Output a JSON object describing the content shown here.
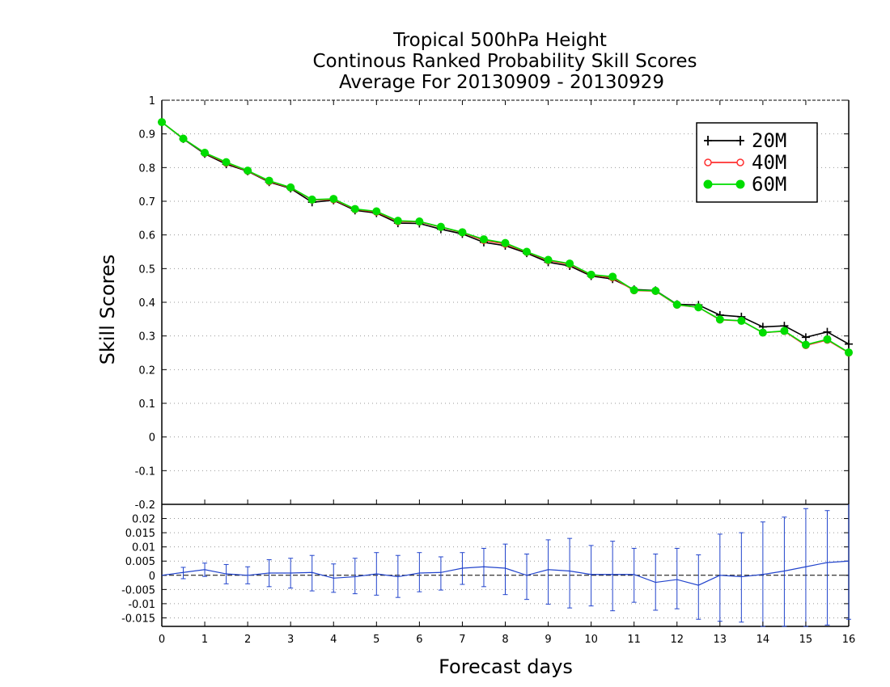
{
  "chart_data": [
    {
      "type": "line",
      "title_lines": [
        "Tropical 500hPa Height",
        "Continous Ranked Probability Skill Scores",
        "Average For 20130909 - 20130929"
      ],
      "xlabel": "Forecast days",
      "ylabel": "Skill Scores",
      "xlim": [
        0,
        16
      ],
      "ylim": [
        -0.2,
        1
      ],
      "x_ticks": [
        0,
        1,
        2,
        3,
        4,
        5,
        6,
        7,
        8,
        9,
        10,
        11,
        12,
        13,
        14,
        15,
        16
      ],
      "y_ticks": [
        -0.2,
        -0.1,
        0,
        0.1,
        0.2,
        0.3,
        0.4,
        0.5,
        0.6,
        0.7,
        0.8,
        0.9,
        1
      ],
      "y_tick_labels": [
        "-0.2",
        "-0.1",
        "0",
        "0.1",
        "0.2",
        "0.3",
        "0.4",
        "0.5",
        "0.6",
        "0.7",
        "0.8",
        "0.9",
        "1"
      ],
      "grid": true,
      "legend_position": "top-right",
      "x": [
        0,
        0.5,
        1,
        1.5,
        2,
        2.5,
        3,
        3.5,
        4,
        4.5,
        5,
        5.5,
        6,
        6.5,
        7,
        7.5,
        8,
        8.5,
        9,
        9.5,
        10,
        10.5,
        11,
        11.5,
        12,
        12.5,
        13,
        13.5,
        14,
        14.5,
        15,
        15.5,
        16
      ],
      "series": [
        {
          "name": "20M",
          "color": "#000000",
          "marker": "plus",
          "values": [
            0.935,
            0.885,
            0.841,
            0.81,
            0.789,
            0.757,
            0.738,
            0.697,
            0.703,
            0.673,
            0.665,
            0.635,
            0.634,
            0.617,
            0.603,
            0.578,
            0.568,
            0.546,
            0.519,
            0.508,
            0.478,
            0.469,
            0.438,
            0.435,
            0.394,
            0.392,
            0.362,
            0.357,
            0.327,
            0.33,
            0.296,
            0.312,
            0.276
          ]
        },
        {
          "name": "40M",
          "color": "#ff3030",
          "marker": "open-circle",
          "values": [
            0.935,
            0.886,
            0.843,
            0.814,
            0.79,
            0.759,
            0.74,
            0.704,
            0.705,
            0.676,
            0.668,
            0.64,
            0.639,
            0.623,
            0.607,
            0.584,
            0.573,
            0.549,
            0.524,
            0.513,
            0.481,
            0.473,
            0.435,
            0.433,
            0.392,
            0.385,
            0.348,
            0.345,
            0.31,
            0.314,
            0.272,
            0.288,
            0.25
          ]
        },
        {
          "name": "60M",
          "color": "#00dd00",
          "marker": "filled-circle",
          "values": [
            0.935,
            0.886,
            0.844,
            0.816,
            0.791,
            0.761,
            0.741,
            0.705,
            0.707,
            0.677,
            0.67,
            0.642,
            0.64,
            0.624,
            0.608,
            0.587,
            0.576,
            0.55,
            0.526,
            0.515,
            0.482,
            0.476,
            0.436,
            0.434,
            0.393,
            0.385,
            0.349,
            0.345,
            0.31,
            0.315,
            0.274,
            0.29,
            0.251
          ]
        }
      ]
    },
    {
      "type": "line",
      "xlim": [
        0,
        16
      ],
      "ylim": [
        -0.018,
        0.025
      ],
      "x_ticks": [
        0,
        1,
        2,
        3,
        4,
        5,
        6,
        7,
        8,
        9,
        10,
        11,
        12,
        13,
        14,
        15,
        16
      ],
      "y_ticks": [
        -0.015,
        -0.01,
        -0.005,
        0,
        0.005,
        0.01,
        0.015,
        0.02
      ],
      "y_tick_labels": [
        "-0.015",
        "-0.01",
        "-0.005",
        "0",
        "0.005",
        "0.01",
        "0.015",
        "0.02"
      ],
      "grid": true,
      "zero_line": true,
      "x": [
        0,
        0.5,
        1,
        1.5,
        2,
        2.5,
        3,
        3.5,
        4,
        4.5,
        5,
        5.5,
        6,
        6.5,
        7,
        7.5,
        8,
        8.5,
        9,
        9.5,
        10,
        10.5,
        11,
        11.5,
        12,
        12.5,
        13,
        13.5,
        14,
        14.5,
        15,
        15.5,
        16
      ],
      "series": [
        {
          "color": "#2244cc",
          "values": [
            0.0,
            0.001,
            0.002,
            0.0005,
            0.0,
            0.0008,
            0.0008,
            0.001,
            -0.001,
            -0.0005,
            0.0005,
            -0.0005,
            0.0008,
            0.001,
            0.0025,
            0.003,
            0.0025,
            0.0,
            0.002,
            0.0015,
            0.0003,
            0.0003,
            0.0003,
            -0.0025,
            -0.0015,
            -0.0035,
            0.0,
            -0.0005,
            0.0003,
            0.0015,
            0.003,
            0.0045,
            0.005
          ],
          "error_low": [
            null,
            -0.0012,
            -0.0004,
            -0.003,
            -0.003,
            -0.004,
            -0.0045,
            -0.0055,
            -0.006,
            -0.0065,
            -0.007,
            -0.0078,
            -0.0058,
            -0.0052,
            -0.0032,
            -0.004,
            -0.0068,
            -0.0085,
            -0.0102,
            -0.0115,
            -0.0108,
            -0.0125,
            -0.0095,
            -0.0123,
            -0.0118,
            -0.0155,
            -0.0162,
            -0.0165,
            -0.018,
            -0.018,
            -0.018,
            -0.0175,
            -0.0155
          ],
          "error_high": [
            null,
            0.0028,
            0.0043,
            0.0038,
            0.003,
            0.0055,
            0.006,
            0.007,
            0.004,
            0.006,
            0.008,
            0.007,
            0.008,
            0.0065,
            0.008,
            0.0095,
            0.011,
            0.0075,
            0.0125,
            0.013,
            0.0105,
            0.012,
            0.0095,
            0.0075,
            0.0095,
            0.0072,
            0.0145,
            0.015,
            0.0188,
            0.0205,
            0.0235,
            0.0228,
            null
          ]
        }
      ]
    }
  ]
}
